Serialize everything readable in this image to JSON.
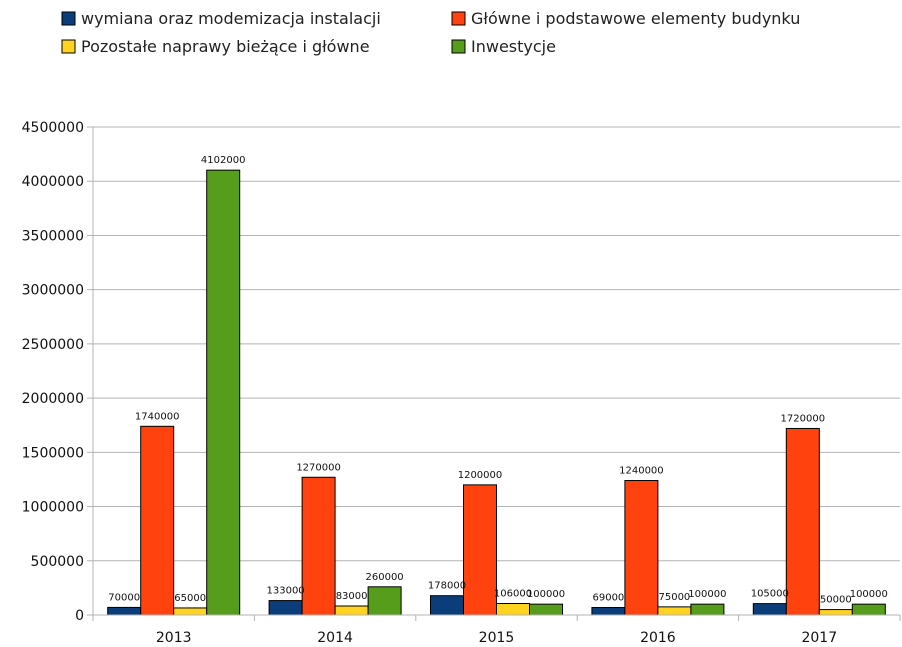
{
  "chart_data": {
    "type": "bar",
    "categories": [
      "2013",
      "2014",
      "2015",
      "2016",
      "2017"
    ],
    "series": [
      {
        "name": "wymiana oraz modemizacja instalacji",
        "color": "#0b3d7a",
        "values": [
          70000,
          133000,
          178000,
          69000,
          105000
        ]
      },
      {
        "name": "Główne i podstawowe elementy budynku",
        "color": "#ff420e",
        "values": [
          1740000,
          1270000,
          1200000,
          1240000,
          1720000
        ]
      },
      {
        "name": "Pozostałe naprawy bieżące i główne",
        "color": "#ffd320",
        "values": [
          65000,
          83000,
          106000,
          75000,
          50000
        ]
      },
      {
        "name": "Inwestycje",
        "color": "#579d1c",
        "values": [
          4102000,
          260000,
          100000,
          100000,
          100000
        ]
      }
    ],
    "data_labels": [
      [
        "70000",
        "133000",
        "178000",
        "69000",
        "105000"
      ],
      [
        "1740000",
        "1270000",
        "1200000",
        "1240000",
        "1720000"
      ],
      [
        "65000",
        "83000",
        "106000",
        "75000",
        "50000"
      ],
      [
        "4102000",
        "260000",
        "100000",
        "100000",
        "100000"
      ]
    ],
    "yticks": [
      "0",
      "500000",
      "1000000",
      "1500000",
      "2000000",
      "2500000",
      "3000000",
      "3500000",
      "4000000",
      "4500000"
    ],
    "ylim": [
      0,
      4500000
    ],
    "grid": true,
    "legend_position": "top",
    "title": "",
    "xlabel": "",
    "ylabel": ""
  }
}
